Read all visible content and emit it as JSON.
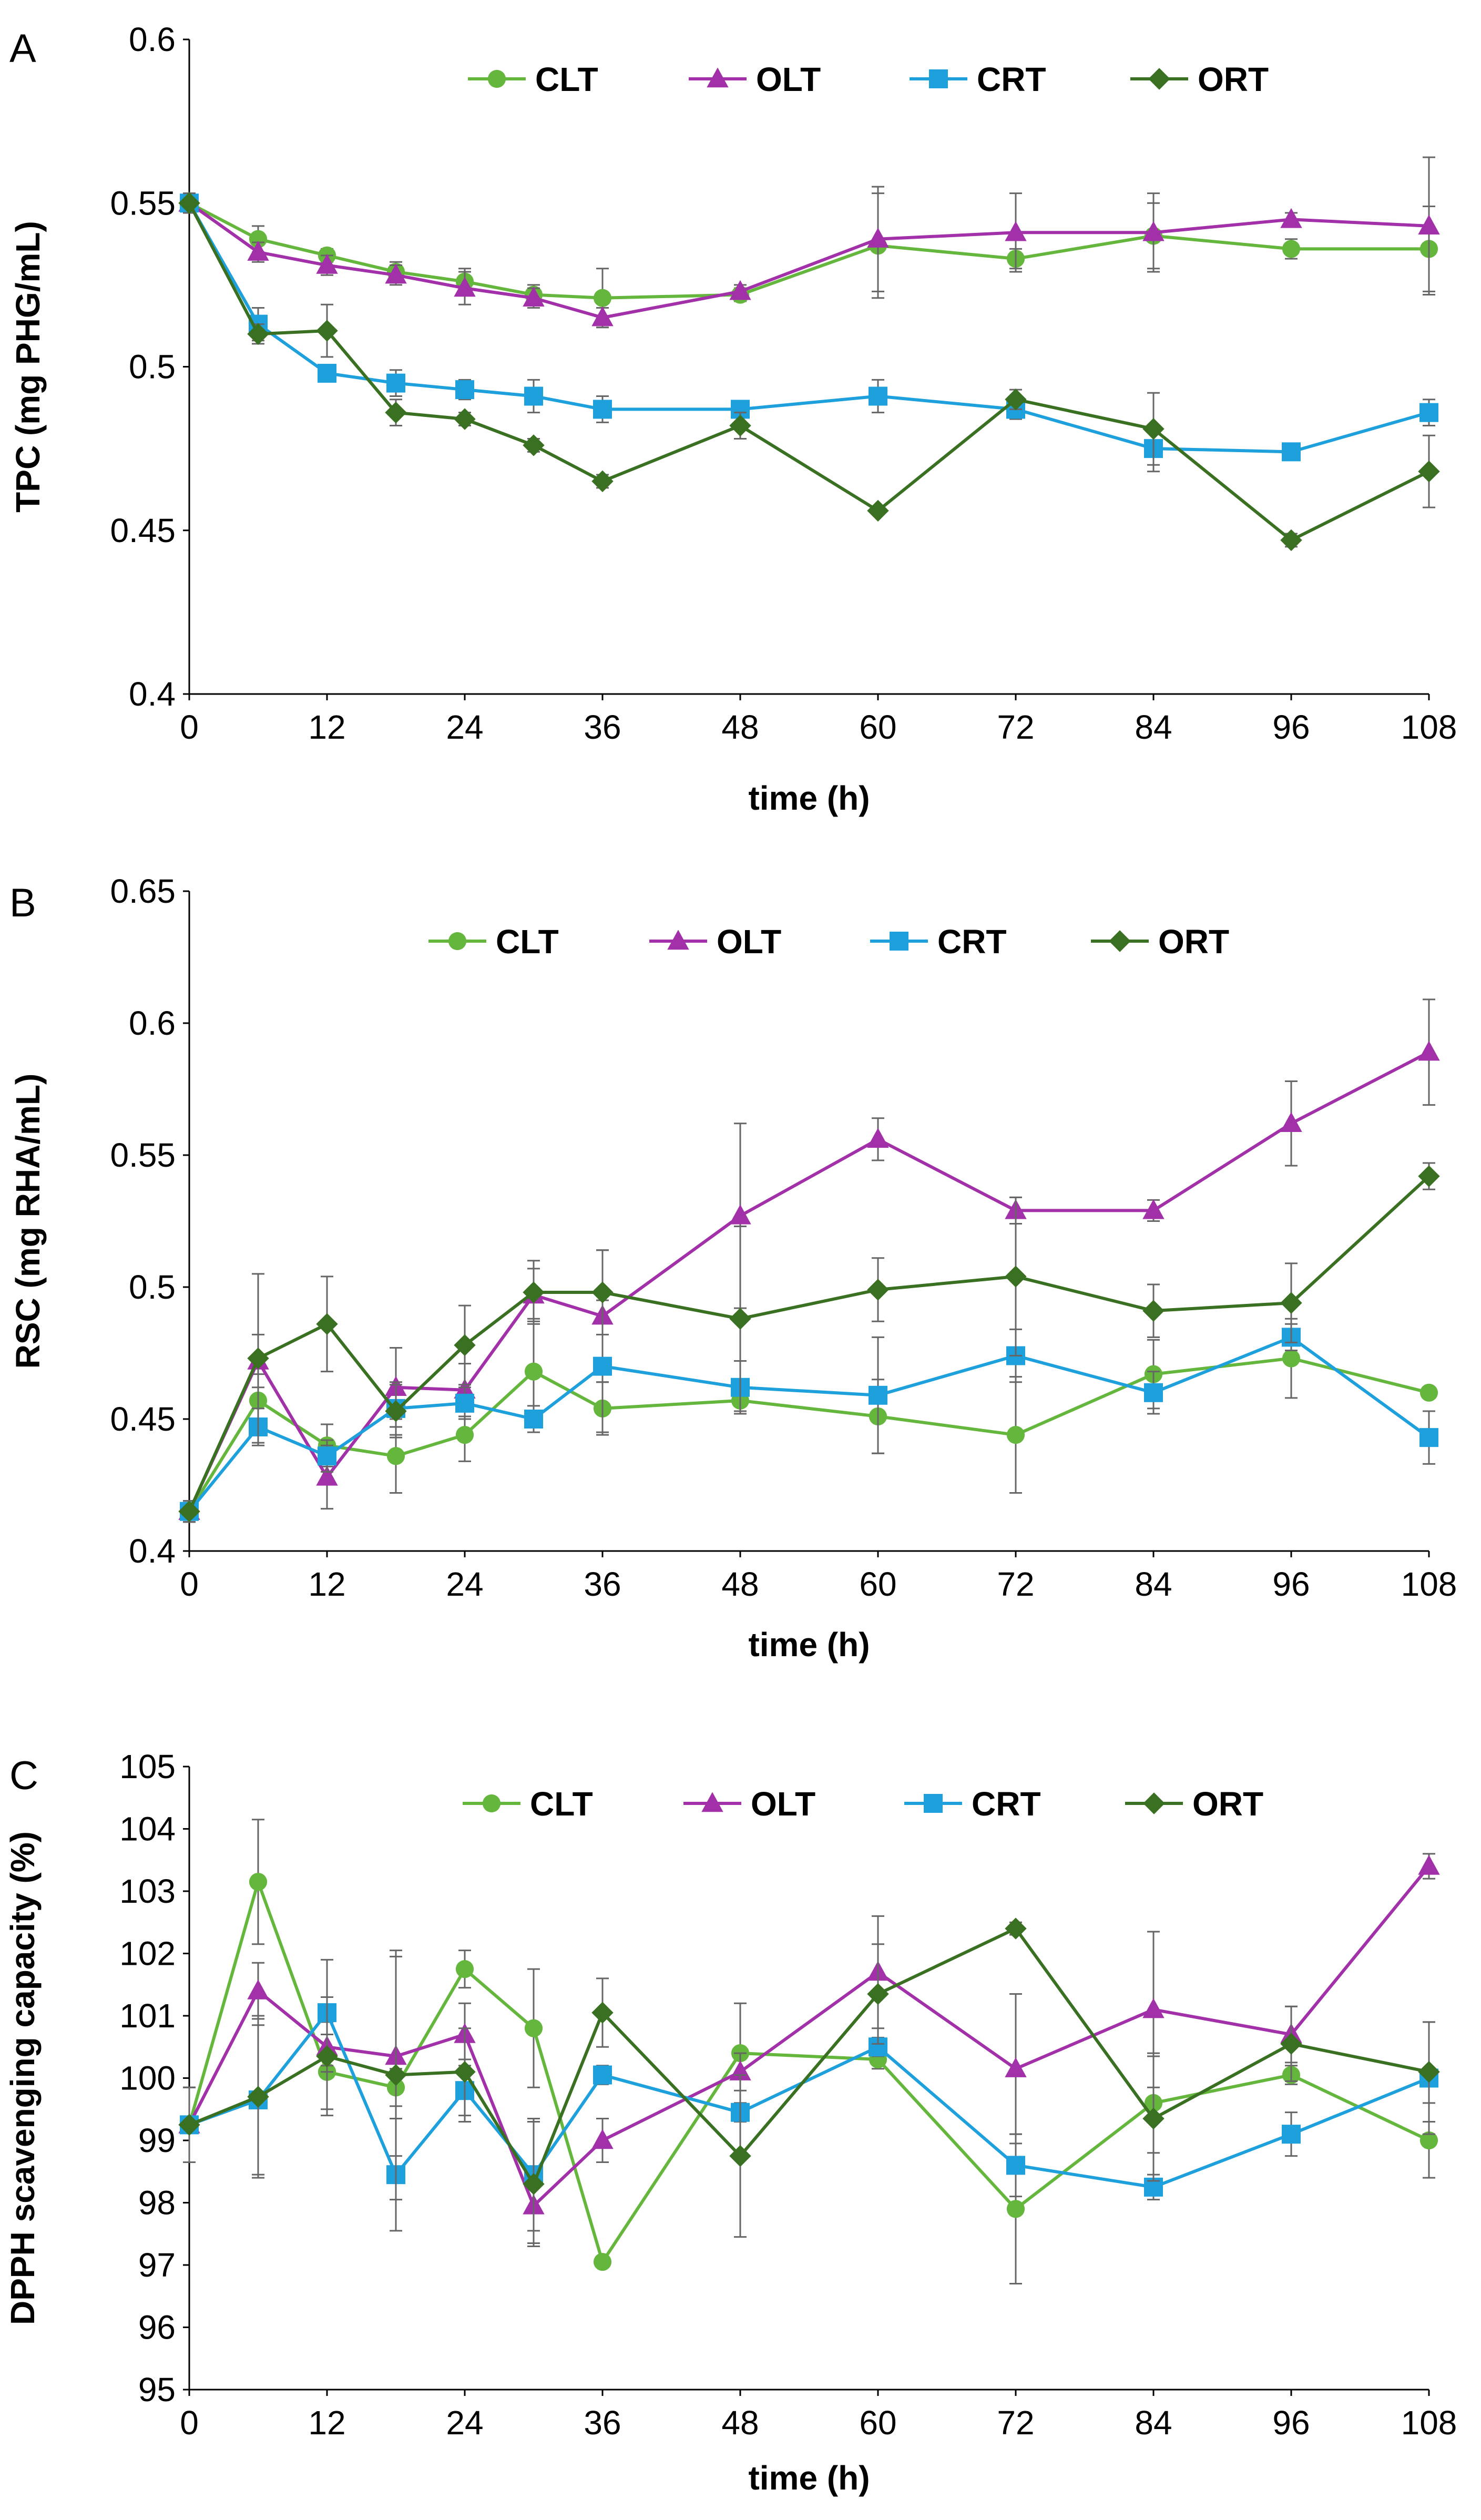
{
  "colors": {
    "CLT": "#64b63c",
    "OLT": "#a230a8",
    "CRT": "#1ea0dc",
    "ORT": "#3a7021"
  },
  "chart_data": [
    {
      "type": "line",
      "panel": "A",
      "ylabel": "TPC (mg PHG/mL)",
      "xlabel": "time (h)",
      "ylim": [
        0.4,
        0.6
      ],
      "yticks": [
        0.4,
        0.45,
        0.5,
        0.55,
        0.6
      ],
      "ytick_labels": [
        "0.4",
        "0.45",
        "0.5",
        "0.55",
        "0.6"
      ],
      "xlim": [
        0,
        108
      ],
      "xticks": [
        0,
        12,
        24,
        36,
        48,
        60,
        72,
        84,
        96,
        108
      ],
      "xtick_labels": [
        "0",
        "12",
        "24",
        "36",
        "48",
        "60",
        "72",
        "84",
        "96",
        "108"
      ],
      "legend": [
        "CLT",
        "OLT",
        "CRT",
        "ORT"
      ],
      "series": [
        {
          "name": "CLT",
          "marker": "circle",
          "x": [
            0,
            6,
            12,
            18,
            24,
            30,
            36,
            48,
            60,
            72,
            84,
            96,
            108
          ],
          "values": [
            0.55,
            0.539,
            0.534,
            0.529,
            0.526,
            0.522,
            0.521,
            0.522,
            0.537,
            0.533,
            0.54,
            0.536,
            0.536
          ],
          "errors": [
            0.003,
            0.004,
            0.002,
            0.003,
            0.004,
            0.003,
            0.009,
            0.002,
            0.016,
            0.003,
            0.01,
            0.003,
            0.013
          ]
        },
        {
          "name": "OLT",
          "marker": "triangle",
          "x": [
            0,
            6,
            12,
            18,
            24,
            30,
            36,
            48,
            60,
            72,
            84,
            96,
            108
          ],
          "values": [
            0.55,
            0.535,
            0.531,
            0.528,
            0.524,
            0.521,
            0.515,
            0.523,
            0.539,
            0.541,
            0.541,
            0.545,
            0.543
          ],
          "errors": [
            0.003,
            0.003,
            0.003,
            0.003,
            0.005,
            0.003,
            0.003,
            0.002,
            0.016,
            0.012,
            0.012,
            0.002,
            0.021
          ]
        },
        {
          "name": "CRT",
          "marker": "square",
          "x": [
            0,
            6,
            12,
            18,
            24,
            30,
            36,
            48,
            60,
            72,
            84,
            96,
            108
          ],
          "values": [
            0.55,
            0.513,
            0.498,
            0.495,
            0.493,
            0.491,
            0.487,
            0.487,
            0.491,
            0.487,
            0.475,
            0.474,
            0.486
          ],
          "errors": [
            0.003,
            0.005,
            0.002,
            0.004,
            0.003,
            0.005,
            0.004,
            0.002,
            0.005,
            0.003,
            0.007,
            0.002,
            0.004
          ]
        },
        {
          "name": "ORT",
          "marker": "diamond",
          "x": [
            0,
            6,
            12,
            18,
            24,
            30,
            36,
            48,
            60,
            72,
            84,
            96,
            108
          ],
          "values": [
            0.55,
            0.51,
            0.511,
            0.486,
            0.484,
            0.476,
            0.465,
            0.482,
            0.456,
            0.49,
            0.481,
            0.447,
            0.468
          ],
          "errors": [
            0.003,
            0.003,
            0.008,
            0.004,
            0.002,
            0.002,
            0.002,
            0.004,
            0.001,
            0.003,
            0.011,
            0.002,
            0.011
          ]
        }
      ]
    },
    {
      "type": "line",
      "panel": "B",
      "ylabel": "RSC (mg RHA/mL)",
      "xlabel": "time (h)",
      "ylim": [
        0.4,
        0.65
      ],
      "yticks": [
        0.4,
        0.45,
        0.5,
        0.55,
        0.6,
        0.65
      ],
      "ytick_labels": [
        "0.4",
        "0.45",
        "0.5",
        "0.55",
        "0.6",
        "0.65"
      ],
      "xlim": [
        0,
        108
      ],
      "xticks": [
        0,
        12,
        24,
        36,
        48,
        60,
        72,
        84,
        96,
        108
      ],
      "xtick_labels": [
        "0",
        "12",
        "24",
        "36",
        "48",
        "60",
        "72",
        "84",
        "96",
        "108"
      ],
      "legend": [
        "CLT",
        "OLT",
        "CRT",
        "ORT"
      ],
      "series": [
        {
          "name": "CLT",
          "marker": "circle",
          "x": [
            0,
            6,
            12,
            18,
            24,
            30,
            36,
            48,
            60,
            72,
            84,
            96,
            108
          ],
          "values": [
            0.415,
            0.457,
            0.44,
            0.436,
            0.444,
            0.468,
            0.454,
            0.457,
            0.451,
            0.444,
            0.467,
            0.473,
            0.46
          ],
          "errors": [
            0.004,
            0.01,
            0.008,
            0.014,
            0.01,
            0.02,
            0.01,
            0.005,
            0.014,
            0.022,
            0.013,
            0.015,
            0.002
          ]
        },
        {
          "name": "OLT",
          "marker": "triangle",
          "x": [
            0,
            6,
            12,
            18,
            24,
            30,
            36,
            48,
            60,
            72,
            84,
            96,
            108
          ],
          "values": [
            0.415,
            0.472,
            0.428,
            0.462,
            0.461,
            0.497,
            0.489,
            0.527,
            0.556,
            0.529,
            0.529,
            0.562,
            0.589
          ],
          "errors": [
            0.004,
            0.01,
            0.012,
            0.015,
            0.01,
            0.01,
            0.025,
            0.035,
            0.008,
            0.005,
            0.004,
            0.016,
            0.02
          ]
        },
        {
          "name": "CRT",
          "marker": "square",
          "x": [
            0,
            6,
            12,
            18,
            24,
            30,
            36,
            48,
            60,
            72,
            84,
            96,
            108
          ],
          "values": [
            0.415,
            0.447,
            0.436,
            0.454,
            0.456,
            0.45,
            0.47,
            0.462,
            0.459,
            0.474,
            0.46,
            0.481,
            0.443
          ],
          "errors": [
            0.004,
            0.007,
            0.006,
            0.01,
            0.006,
            0.005,
            0.025,
            0.01,
            0.022,
            0.01,
            0.008,
            0.005,
            0.01
          ]
        },
        {
          "name": "ORT",
          "marker": "diamond",
          "x": [
            0,
            6,
            12,
            18,
            24,
            30,
            36,
            48,
            60,
            72,
            84,
            96,
            108
          ],
          "values": [
            0.415,
            0.473,
            0.486,
            0.453,
            0.478,
            0.498,
            0.498,
            0.488,
            0.499,
            0.504,
            0.491,
            0.494,
            0.542
          ],
          "errors": [
            0.004,
            0.032,
            0.018,
            0.01,
            0.015,
            0.012,
            0.016,
            0.035,
            0.012,
            0.03,
            0.01,
            0.015,
            0.005
          ]
        }
      ]
    },
    {
      "type": "line",
      "panel": "C",
      "ylabel": "DPPH scavenging capacity (%)",
      "xlabel": "time (h)",
      "ylim": [
        95,
        105
      ],
      "yticks": [
        95,
        96,
        97,
        98,
        99,
        100,
        101,
        102,
        103,
        104,
        105
      ],
      "ytick_labels": [
        "95",
        "96",
        "97",
        "98",
        "99",
        "100",
        "101",
        "102",
        "103",
        "104",
        "105"
      ],
      "xlim": [
        0,
        108
      ],
      "xticks": [
        0,
        12,
        24,
        36,
        48,
        60,
        72,
        84,
        96,
        108
      ],
      "xtick_labels": [
        "0",
        "12",
        "24",
        "36",
        "48",
        "60",
        "72",
        "84",
        "96",
        "108"
      ],
      "legend": [
        "CLT",
        "OLT",
        "CRT",
        "ORT"
      ],
      "series": [
        {
          "name": "CLT",
          "marker": "circle",
          "x": [
            0,
            6,
            12,
            18,
            24,
            30,
            36,
            48,
            60,
            72,
            84,
            96,
            108
          ],
          "values": [
            99.25,
            103.15,
            100.1,
            99.85,
            101.75,
            100.8,
            97.05,
            100.4,
            100.3,
            97.9,
            99.6,
            100.05,
            99.0
          ],
          "errors": [
            0.6,
            1.0,
            0.6,
            0.3,
            0.3,
            0.95,
            0.08,
            0.8,
            0.15,
            1.2,
            0.8,
            0.15,
            0.6
          ]
        },
        {
          "name": "OLT",
          "marker": "triangle",
          "x": [
            0,
            6,
            12,
            18,
            24,
            30,
            36,
            48,
            60,
            72,
            84,
            96,
            108
          ],
          "values": [
            99.25,
            101.4,
            100.5,
            100.35,
            100.7,
            97.95,
            99.0,
            100.1,
            101.7,
            100.15,
            101.1,
            100.7,
            103.4
          ],
          "errors": [
            0.6,
            0.45,
            0.4,
            1.6,
            0.5,
            0.6,
            0.35,
            0.3,
            0.9,
            1.2,
            1.25,
            0.45,
            0.2
          ]
        },
        {
          "name": "CRT",
          "marker": "square",
          "x": [
            0,
            6,
            12,
            18,
            24,
            30,
            36,
            48,
            60,
            72,
            84,
            96,
            108
          ],
          "values": [
            99.25,
            99.65,
            101.05,
            98.45,
            99.8,
            98.45,
            100.05,
            99.45,
            100.5,
            98.6,
            98.25,
            99.1,
            100.0
          ],
          "errors": [
            0.6,
            1.2,
            0.85,
            0.9,
            0.5,
            0.9,
            0.15,
            0.15,
            0.15,
            0.5,
            0.2,
            0.35,
            0.9
          ]
        },
        {
          "name": "ORT",
          "marker": "diamond",
          "x": [
            0,
            6,
            12,
            18,
            24,
            30,
            36,
            48,
            60,
            72,
            84,
            96,
            108
          ],
          "values": [
            99.25,
            99.7,
            100.35,
            100.05,
            100.1,
            98.3,
            101.05,
            98.75,
            101.35,
            102.4,
            99.35,
            100.55,
            100.1
          ],
          "errors": [
            0.6,
            1.3,
            0.95,
            2.0,
            0.7,
            1.0,
            0.55,
            1.3,
            0.8,
            0.1,
            1.0,
            0.6,
            0.8
          ]
        }
      ]
    }
  ]
}
